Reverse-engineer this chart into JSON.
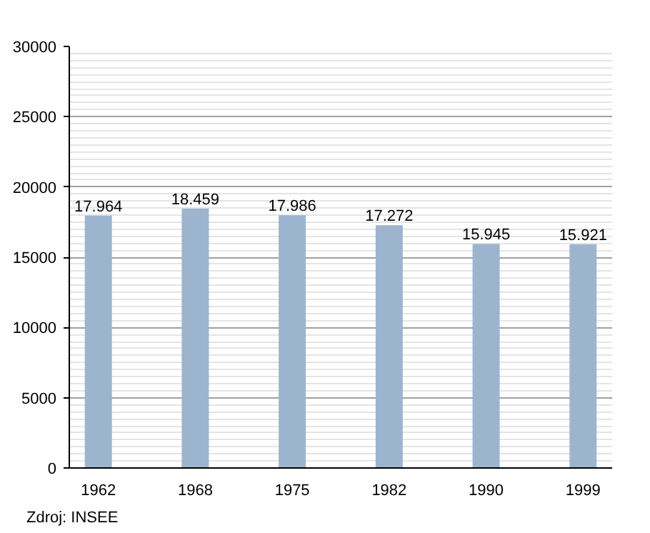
{
  "chart_data": {
    "type": "bar",
    "categories": [
      "1962",
      "1968",
      "1975",
      "1982",
      "1990",
      "1999"
    ],
    "values": [
      17964,
      18459,
      17986,
      17272,
      15945,
      15921
    ],
    "value_labels": [
      "17.964",
      "18.459",
      "17.986",
      "17.272",
      "15.945",
      "15.921"
    ],
    "color": "#9db4cf",
    "ylim": [
      0,
      30000
    ],
    "yticks": [
      0,
      5000,
      10000,
      15000,
      20000,
      25000,
      30000
    ],
    "grid": "y",
    "annotations": [
      "Zdroj: INSEE"
    ]
  }
}
